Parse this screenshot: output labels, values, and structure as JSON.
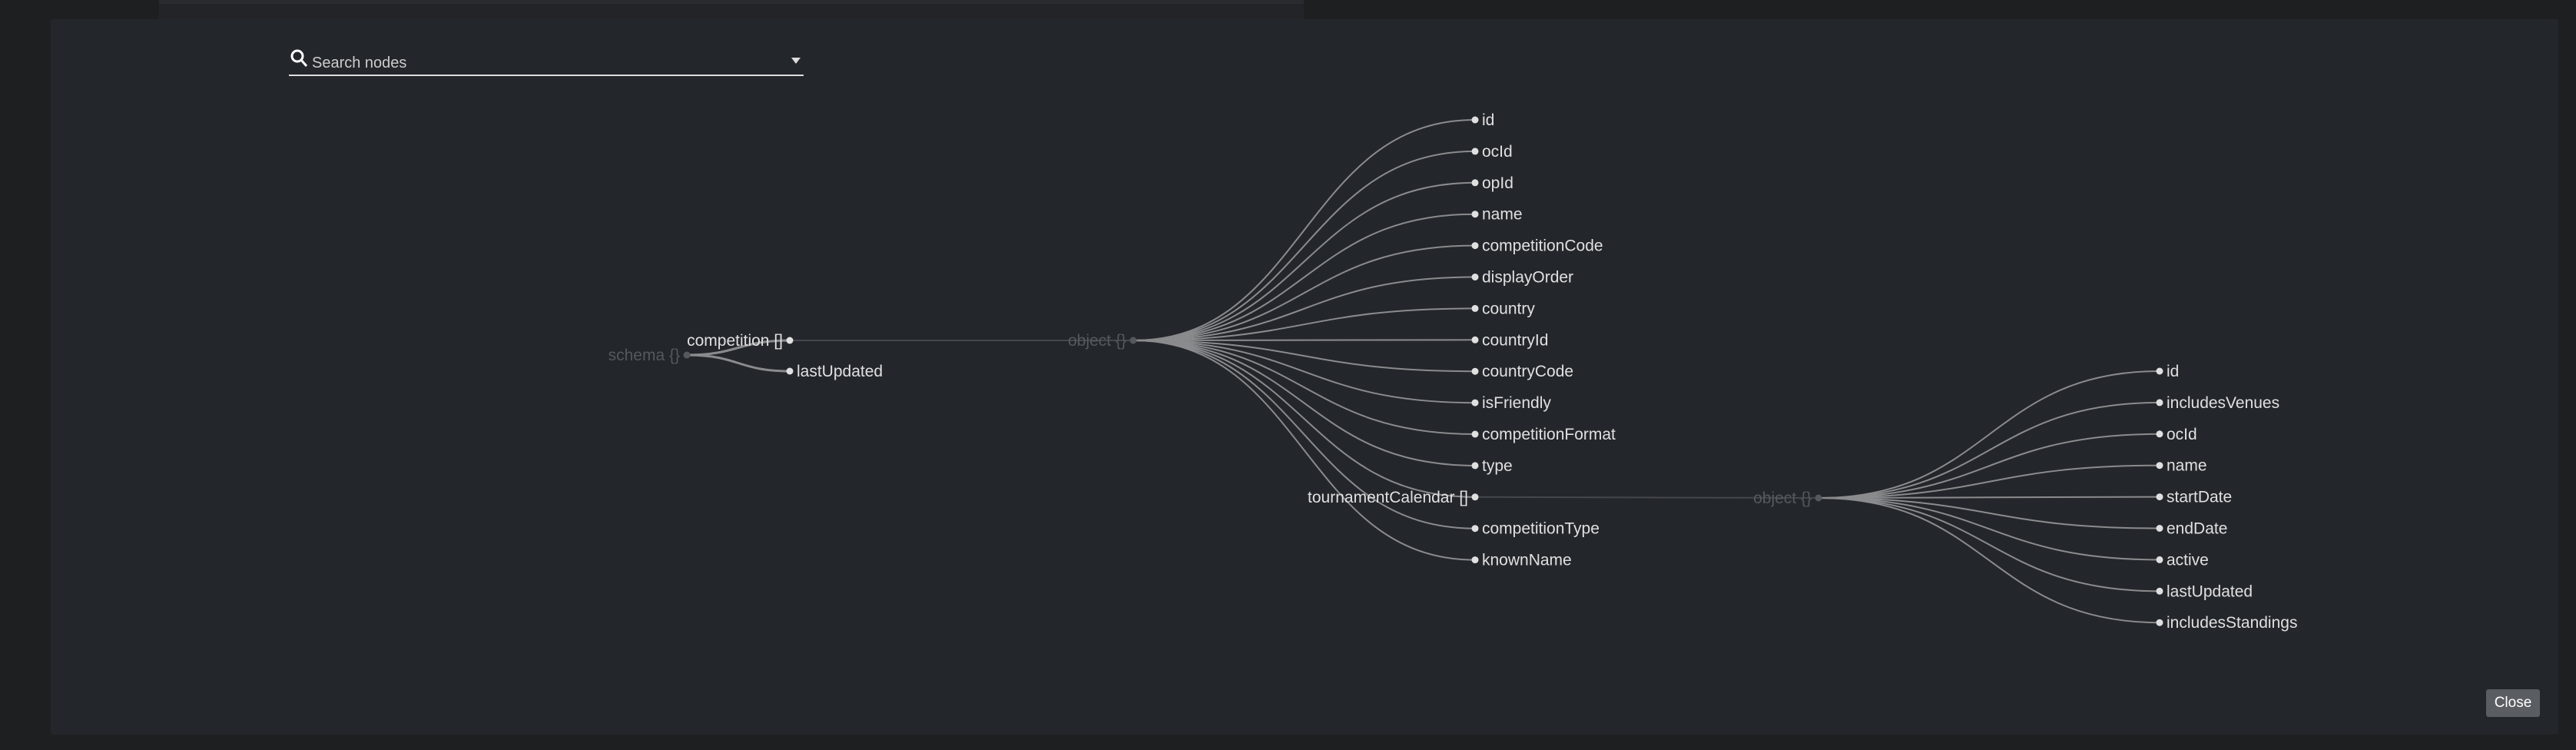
{
  "search": {
    "placeholder": "Search nodes",
    "icon": "search-icon"
  },
  "close_label": "Close",
  "colors": {
    "link": "#8a8b8d",
    "leaf_text": "#e0e0e0",
    "type_text": "#55585c",
    "modal_bg": "#23262b"
  },
  "tree": {
    "label": "schema {}",
    "children": [
      {
        "label": "competition []",
        "child": {
          "label": "object {}",
          "children": [
            {
              "label": "id"
            },
            {
              "label": "ocId"
            },
            {
              "label": "opId"
            },
            {
              "label": "name"
            },
            {
              "label": "competitionCode"
            },
            {
              "label": "displayOrder"
            },
            {
              "label": "country"
            },
            {
              "label": "countryId"
            },
            {
              "label": "countryCode"
            },
            {
              "label": "isFriendly"
            },
            {
              "label": "competitionFormat"
            },
            {
              "label": "type"
            },
            {
              "label": "tournamentCalendar []",
              "child": {
                "label": "object {}",
                "children": [
                  {
                    "label": "id"
                  },
                  {
                    "label": "includesVenues"
                  },
                  {
                    "label": "ocId"
                  },
                  {
                    "label": "name"
                  },
                  {
                    "label": "startDate"
                  },
                  {
                    "label": "endDate"
                  },
                  {
                    "label": "active"
                  },
                  {
                    "label": "lastUpdated"
                  },
                  {
                    "label": "includesStandings"
                  }
                ]
              }
            },
            {
              "label": "competitionType"
            },
            {
              "label": "knownName"
            }
          ]
        }
      },
      {
        "label": "lastUpdated"
      }
    ]
  }
}
